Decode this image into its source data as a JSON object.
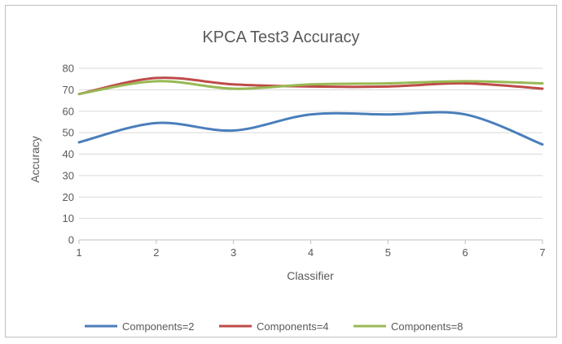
{
  "chart_data": {
    "type": "line",
    "title": "KPCA Test3 Accuracy",
    "xlabel": "Classifier",
    "ylabel": "Accuracy",
    "x": [
      1,
      2,
      3,
      4,
      5,
      6,
      7
    ],
    "xlim": [
      1,
      7
    ],
    "ylim": [
      0,
      80
    ],
    "yticks": [
      0,
      10,
      20,
      30,
      40,
      50,
      60,
      70,
      80
    ],
    "grid": true,
    "legend": "bottom",
    "series": [
      {
        "name": "Components=2",
        "color": "#4a7ebb",
        "values": [
          45.5,
          54.5,
          51,
          58.5,
          58.5,
          58.5,
          44.5
        ]
      },
      {
        "name": "Components=4",
        "color": "#be4b48",
        "values": [
          68,
          75.5,
          72.5,
          71.5,
          71.5,
          73,
          70.5
        ]
      },
      {
        "name": "Components=8",
        "color": "#98b954",
        "values": [
          68,
          74,
          70.5,
          72.5,
          73,
          74,
          73
        ]
      }
    ]
  }
}
